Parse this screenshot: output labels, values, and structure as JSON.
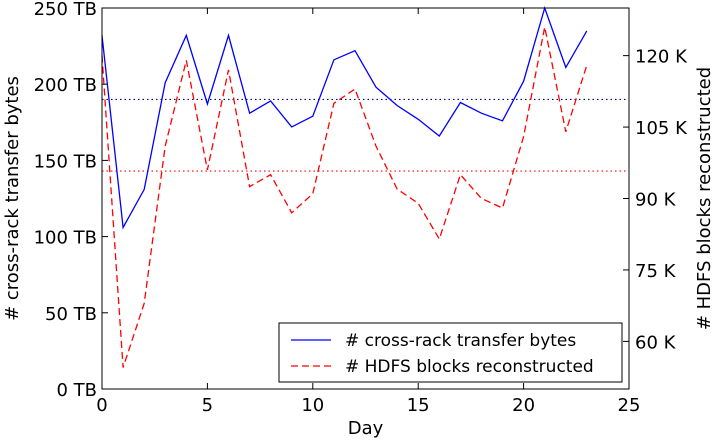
{
  "chart_data": {
    "type": "line",
    "xlabel": "Day",
    "ylabel_left": "# cross-rack transfer bytes",
    "ylabel_right": "# HDFS blocks reconstructed",
    "xlim": [
      0,
      25
    ],
    "ylim_left": [
      0,
      250
    ],
    "ylim_right": [
      50,
      130
    ],
    "x_ticks": [
      0,
      5,
      10,
      15,
      20,
      25
    ],
    "y_left_ticks": [
      0,
      50,
      100,
      150,
      200,
      250
    ],
    "y_left_tick_labels": [
      "0 TB",
      "50 TB",
      "100 TB",
      "150 TB",
      "200 TB",
      "250 TB"
    ],
    "y_right_ticks": [
      60,
      75,
      90,
      105,
      120
    ],
    "y_right_tick_labels": [
      "60 K",
      "75 K",
      "90 K",
      "105 K",
      "120 K"
    ],
    "legend_position": "lower-right",
    "series": [
      {
        "name": "# cross-rack transfer bytes",
        "axis": "left",
        "color": "#0000ff",
        "style": "solid",
        "x": [
          0,
          1,
          2,
          3,
          4,
          5,
          6,
          7,
          8,
          9,
          10,
          11,
          12,
          13,
          14,
          15,
          16,
          17,
          18,
          19,
          20,
          21,
          22,
          23
        ],
        "values": [
          232,
          106,
          131,
          201,
          232,
          187,
          232,
          181,
          189,
          172,
          179,
          216,
          222,
          198,
          186,
          177,
          166,
          188,
          181,
          176,
          202,
          250,
          211,
          235
        ]
      },
      {
        "name": "# HDFS blocks reconstructed",
        "axis": "right",
        "color": "#ff0000",
        "style": "dashed",
        "x": [
          0,
          1,
          2,
          3,
          4,
          5,
          6,
          7,
          8,
          9,
          10,
          11,
          12,
          13,
          14,
          15,
          16,
          17,
          18,
          19,
          20,
          21,
          22,
          23
        ],
        "values": [
          120,
          54.5,
          68,
          101,
          119,
          96,
          117,
          92.5,
          95,
          87,
          91,
          110,
          113,
          101,
          92,
          89,
          81.5,
          95,
          90,
          88,
          103,
          126,
          104,
          118
        ]
      }
    ],
    "reference_lines": [
      {
        "axis": "left",
        "value": 190,
        "color": "#00008b",
        "style": "dotted"
      },
      {
        "axis": "left",
        "value": 143,
        "color": "#ff0000",
        "style": "dotted"
      }
    ]
  }
}
